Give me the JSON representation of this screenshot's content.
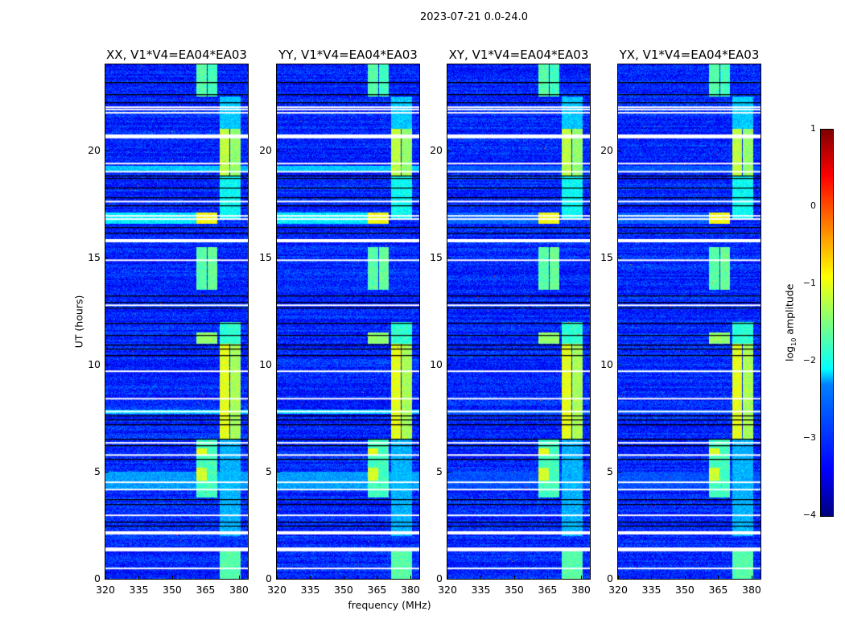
{
  "chart_data": {
    "type": "heatmap",
    "title": "2023-07-21 0.0-24.0",
    "xlabel": "frequency (MHz)",
    "ylabel": "UT (hours)",
    "xlim": [
      320,
      384
    ],
    "ylim": [
      0,
      24
    ],
    "xticks": [
      "320",
      "335",
      "350",
      "365",
      "380"
    ],
    "yticks": [
      "0",
      "5",
      "10",
      "15",
      "20"
    ],
    "colorbar": {
      "label_prefix": "log",
      "label_sub": "10",
      "label_suffix": " amplitude",
      "range": [
        -4,
        1
      ],
      "ticks": [
        "1",
        "0",
        "−1",
        "−2",
        "−3",
        "−4"
      ],
      "colormap": "jet"
    },
    "background_level": -3.2,
    "panels": [
      {
        "title": "XX, V1*V4=EA04*EA03",
        "left_band_strength": 1.0,
        "seed": 11
      },
      {
        "title": "YY, V1*V4=EA04*EA03",
        "left_band_strength": 1.0,
        "seed": 23
      },
      {
        "title": "XY, V1*V4=EA04*EA03",
        "left_band_strength": 0.3,
        "seed": 37
      },
      {
        "title": "YX, V1*V4=EA04*EA03",
        "left_band_strength": 0.3,
        "seed": 51
      }
    ],
    "features": [
      {
        "f": [
          360.7,
          365.5
        ],
        "t": [
          22.5,
          24
        ],
        "level": -1.7
      },
      {
        "f": [
          365.8,
          370.2
        ],
        "t": [
          22.5,
          24
        ],
        "level": -1.8
      },
      {
        "f": [
          360.7,
          370.2
        ],
        "t": [
          16.6,
          17.1
        ],
        "level": -0.9
      },
      {
        "f": [
          360.7,
          365.5
        ],
        "t": [
          13.5,
          15.5
        ],
        "level": -1.7
      },
      {
        "f": [
          365.8,
          370.2
        ],
        "t": [
          13.5,
          15.5
        ],
        "level": -1.6
      },
      {
        "f": [
          360.7,
          370.2
        ],
        "t": [
          11.0,
          11.5
        ],
        "level": -1.4
      },
      {
        "f": [
          360.7,
          370.2
        ],
        "t": [
          3.8,
          6.5
        ],
        "level": -1.8
      },
      {
        "f": [
          360.7,
          365.5
        ],
        "t": [
          4.6,
          5.2
        ],
        "level": -1.1
      },
      {
        "f": [
          360.7,
          365.5
        ],
        "t": [
          5.8,
          6.1
        ],
        "level": -1.0
      },
      {
        "f": [
          371.0,
          375.6
        ],
        "t": [
          18.8,
          21.0
        ],
        "level": -1.2
      },
      {
        "f": [
          376.0,
          380.4
        ],
        "t": [
          18.8,
          21.0
        ],
        "level": -1.4
      },
      {
        "f": [
          371.0,
          380.4
        ],
        "t": [
          16.8,
          18.8
        ],
        "level": -2.1
      },
      {
        "f": [
          371.0,
          380.4
        ],
        "t": [
          21.0,
          22.5
        ],
        "level": -2.4
      },
      {
        "f": [
          371.0,
          380.4
        ],
        "t": [
          11.0,
          12.0
        ],
        "level": -1.9
      },
      {
        "f": [
          371.0,
          375.6
        ],
        "t": [
          6.5,
          11.0
        ],
        "level": -1.0
      },
      {
        "f": [
          376.0,
          380.4
        ],
        "t": [
          6.5,
          11.0
        ],
        "level": -1.3
      },
      {
        "f": [
          371.0,
          380.4
        ],
        "t": [
          0.0,
          1.3
        ],
        "level": -1.7
      },
      {
        "f": [
          371.0,
          380.4
        ],
        "t": [
          2.0,
          6.5
        ],
        "level": -2.5
      },
      {
        "f": [
          320.0,
          365.0
        ],
        "t": [
          16.6,
          17.1
        ],
        "level": -2.2,
        "left": true
      },
      {
        "f": [
          320.0,
          384.0
        ],
        "t": [
          4.2,
          5.0
        ],
        "level": -2.6,
        "left": true
      },
      {
        "f": [
          320.0,
          384.0
        ],
        "t": [
          7.7,
          7.9
        ],
        "level": -2.3,
        "left": true
      },
      {
        "f": [
          320.0,
          384.0
        ],
        "t": [
          19.0,
          19.3
        ],
        "level": -2.4,
        "left": true
      }
    ],
    "flagged_white_hours": [
      [
        21.98,
        22.04
      ],
      [
        21.87,
        21.93
      ],
      [
        21.72,
        21.78
      ],
      [
        20.55,
        20.73
      ],
      [
        19.35,
        19.41
      ],
      [
        18.97,
        19.03
      ],
      [
        17.58,
        17.64
      ],
      [
        16.91,
        16.97
      ],
      [
        16.76,
        16.82
      ],
      [
        15.7,
        15.85
      ],
      [
        14.84,
        14.9
      ],
      [
        12.74,
        12.8
      ],
      [
        9.66,
        9.72
      ],
      [
        8.38,
        8.44
      ],
      [
        7.78,
        7.84
      ],
      [
        6.32,
        6.38
      ],
      [
        5.75,
        5.81
      ],
      [
        4.48,
        4.54
      ],
      [
        4.14,
        4.2
      ],
      [
        2.94,
        3.0
      ],
      [
        2.07,
        2.22
      ],
      [
        1.28,
        1.46
      ],
      [
        0.46,
        0.52
      ]
    ],
    "flagged_black_hours": [
      23.17,
      22.61,
      22.24,
      18.8,
      18.7,
      18.25,
      17.8,
      17.43,
      16.41,
      16.15,
      13.22,
      12.92,
      12.66,
      11.94,
      11.38,
      10.93,
      10.74,
      10.44,
      7.62,
      7.44,
      7.21,
      6.54,
      6.23,
      5.6,
      3.72,
      3.49,
      2.67,
      2.48
    ]
  }
}
